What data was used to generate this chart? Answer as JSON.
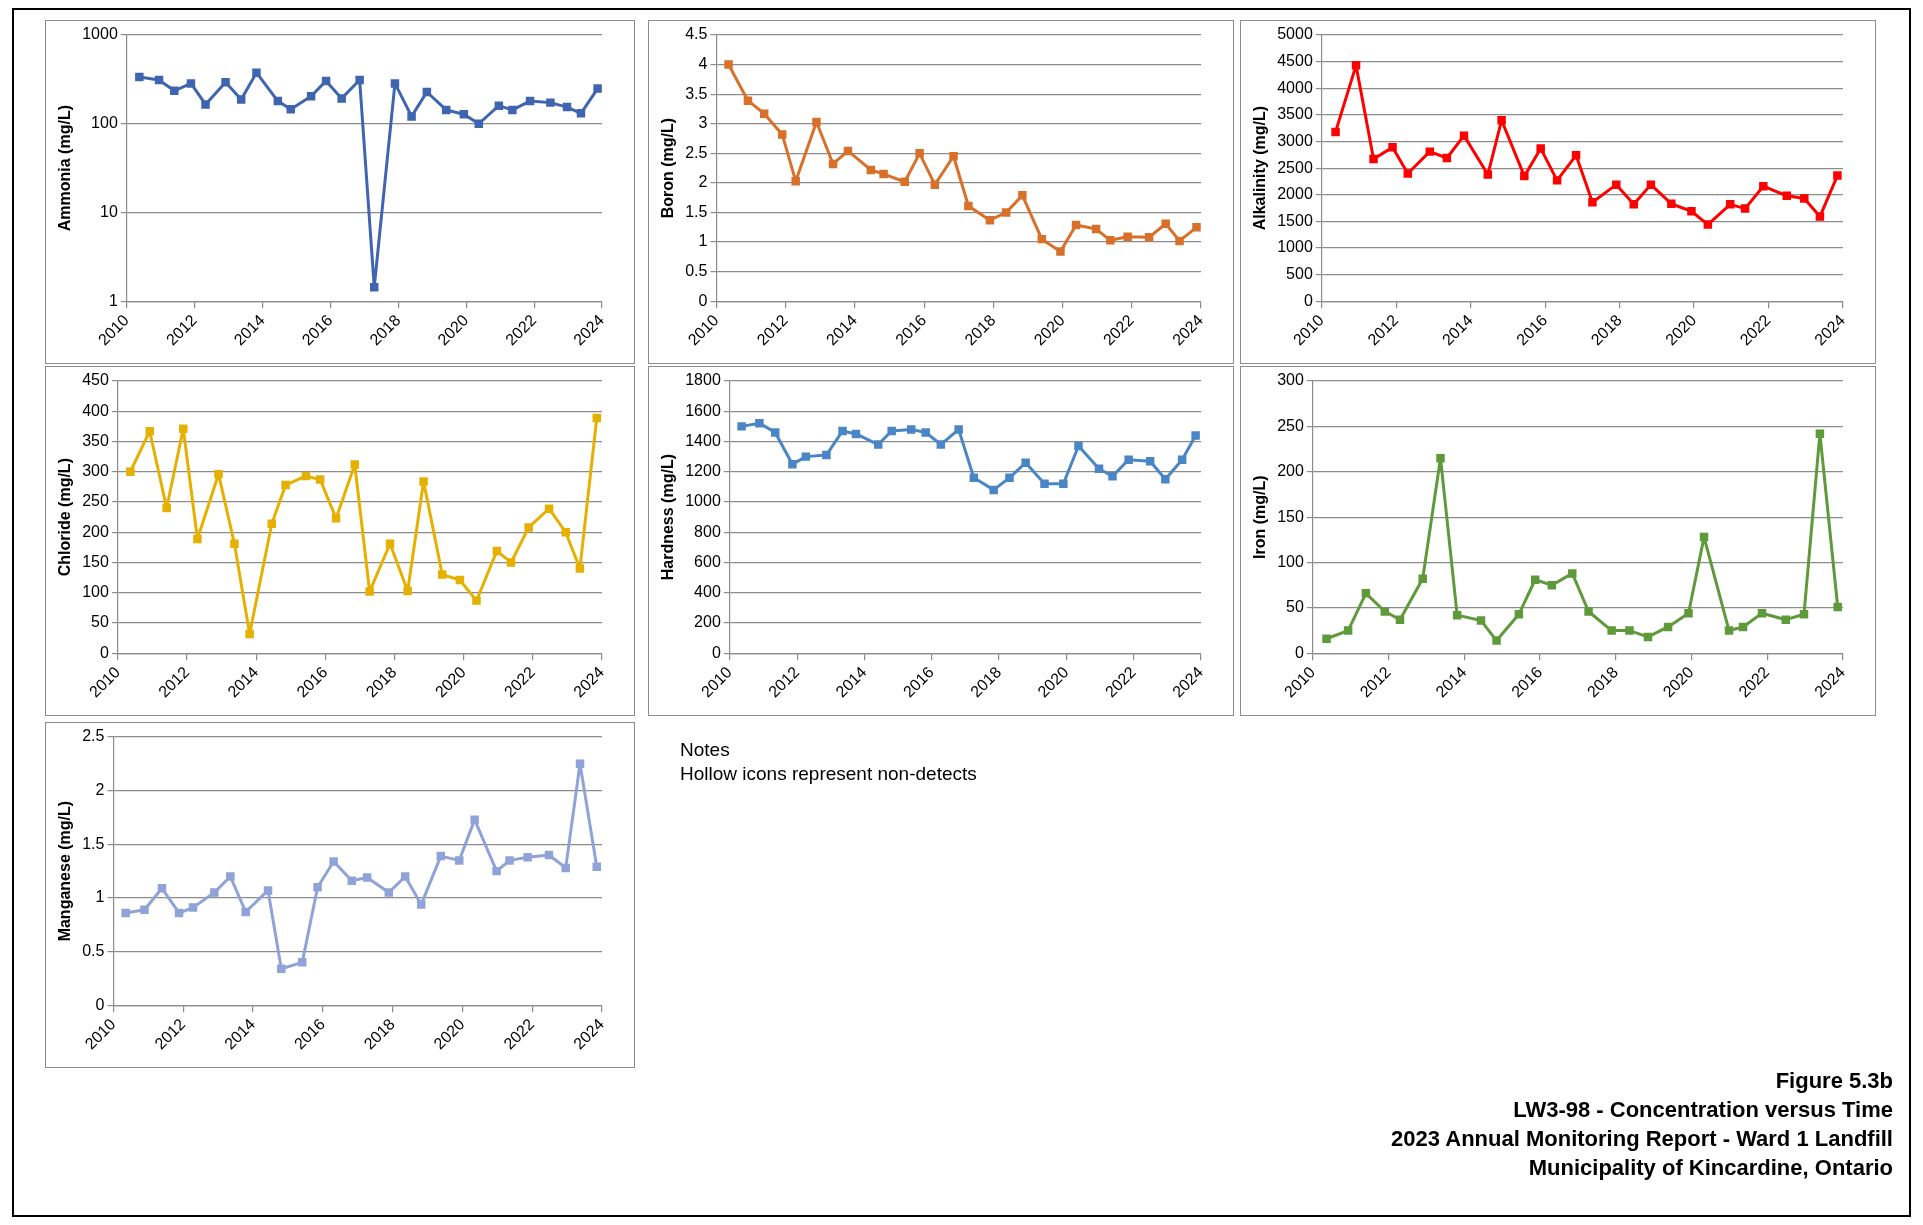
{
  "chart_data": [
    {
      "type": "line",
      "ylabel": "Ammonia (mg/L)",
      "log": "y",
      "xlim": [
        2010,
        2024
      ],
      "xticks": [
        2010,
        2012,
        2014,
        2016,
        2018,
        2020,
        2022,
        2024
      ],
      "ylim": [
        1,
        1000
      ],
      "yticks": [
        1,
        10,
        100,
        1000
      ],
      "grid": "y",
      "marker": "square",
      "series": [
        {
          "color": "#3f65b0",
          "x": [
            2010.37,
            2010.95,
            2011.4,
            2011.89,
            2012.32,
            2012.91,
            2013.37,
            2013.82,
            2014.45,
            2014.83,
            2015.43,
            2015.87,
            2016.33,
            2016.86,
            2017.29,
            2017.9,
            2018.39,
            2018.84,
            2019.41,
            2019.93,
            2020.37,
            2020.96,
            2021.36,
            2021.88,
            2022.48,
            2022.97,
            2023.38,
            2023.87
          ],
          "values": [
            336,
            311,
            235,
            285,
            165,
            294,
            188,
            376,
            180,
            146,
            204,
            304,
            193,
            311,
            1.44,
            285,
            121,
            228,
            143,
            128,
            100,
            160,
            143,
            180,
            173,
            154,
            131,
            249
          ]
        }
      ]
    },
    {
      "type": "line",
      "ylabel": "Boron (mg/L)",
      "xlim": [
        2010,
        2024
      ],
      "xticks": [
        2010,
        2012,
        2014,
        2016,
        2018,
        2020,
        2022,
        2024
      ],
      "ylim": [
        0,
        4.5
      ],
      "yticks": [
        0,
        0.5,
        1,
        1.5,
        2,
        2.5,
        3,
        3.5,
        4,
        4.5
      ],
      "grid": "y",
      "marker": "square",
      "series": [
        {
          "color": "#d8702a",
          "x": [
            2010.35,
            2010.91,
            2011.38,
            2011.9,
            2012.29,
            2012.89,
            2013.37,
            2013.8,
            2014.46,
            2014.83,
            2015.44,
            2015.87,
            2016.31,
            2016.85,
            2017.28,
            2017.9,
            2018.37,
            2018.84,
            2019.4,
            2019.94,
            2020.39,
            2020.97,
            2021.38,
            2021.88,
            2022.5,
            2022.98,
            2023.38,
            2023.87
          ],
          "values": [
            4.0,
            3.39,
            3.17,
            2.82,
            2.03,
            3.03,
            2.32,
            2.54,
            2.22,
            2.15,
            2.02,
            2.5,
            1.97,
            2.45,
            1.61,
            1.37,
            1.5,
            1.79,
            1.05,
            0.84,
            1.29,
            1.22,
            1.03,
            1.09,
            1.08,
            1.31,
            1.02,
            1.25
          ]
        }
      ]
    },
    {
      "type": "line",
      "ylabel": "Alkalinity (mg/L)",
      "xlim": [
        2010,
        2024
      ],
      "xticks": [
        2010,
        2012,
        2014,
        2016,
        2018,
        2020,
        2022,
        2024
      ],
      "ylim": [
        0,
        5000
      ],
      "yticks": [
        0,
        500,
        1000,
        1500,
        2000,
        2500,
        3000,
        3500,
        4000,
        4500,
        5000
      ],
      "grid": "y",
      "marker": "square",
      "series": [
        {
          "color": "#ff0000",
          "x": [
            2010.37,
            2010.92,
            2011.39,
            2011.9,
            2012.31,
            2012.9,
            2013.36,
            2013.82,
            2014.46,
            2014.83,
            2015.44,
            2015.88,
            2016.32,
            2016.83,
            2017.27,
            2017.91,
            2018.38,
            2018.84,
            2019.39,
            2019.93,
            2020.37,
            2020.97,
            2021.37,
            2021.86,
            2022.49,
            2022.96,
            2023.38,
            2023.85
          ],
          "values": [
            3180,
            4430,
            2670,
            2890,
            2400,
            2810,
            2690,
            3110,
            2380,
            3400,
            2350,
            2870,
            2270,
            2740,
            1860,
            2190,
            1820,
            2190,
            1830,
            1690,
            1440,
            1820,
            1740,
            2160,
            1980,
            1930,
            1590,
            2360
          ]
        }
      ]
    },
    {
      "type": "line",
      "ylabel": "Chloride (mg/L)",
      "xlim": [
        2010,
        2024
      ],
      "xticks": [
        2010,
        2012,
        2014,
        2016,
        2018,
        2020,
        2022,
        2024
      ],
      "ylim": [
        0,
        450
      ],
      "yticks": [
        0,
        50,
        100,
        150,
        200,
        250,
        300,
        350,
        400,
        450
      ],
      "grid": "y",
      "marker": "square",
      "series": [
        {
          "color": "#e6b000",
          "x": [
            2010.36,
            2010.92,
            2011.41,
            2011.89,
            2012.3,
            2012.91,
            2013.37,
            2013.81,
            2014.45,
            2014.85,
            2015.44,
            2015.85,
            2016.31,
            2016.85,
            2017.28,
            2017.87,
            2018.38,
            2018.84,
            2019.38,
            2019.89,
            2020.37,
            2020.96,
            2021.37,
            2021.88,
            2022.47,
            2022.95,
            2023.36,
            2023.85
          ],
          "values": [
            300,
            367,
            240,
            371,
            189,
            296,
            181,
            32,
            214,
            278,
            293,
            287,
            223,
            312,
            102,
            181,
            103,
            284,
            130,
            121,
            87,
            169,
            150,
            208,
            239,
            200,
            140,
            389
          ]
        }
      ]
    },
    {
      "type": "line",
      "ylabel": "Hardness (mg/L)",
      "xlim": [
        2010,
        2024
      ],
      "xticks": [
        2010,
        2012,
        2014,
        2016,
        2018,
        2020,
        2022,
        2024
      ],
      "ylim": [
        0,
        1800
      ],
      "yticks": [
        0,
        200,
        400,
        600,
        800,
        1000,
        1200,
        1400,
        1600,
        1800
      ],
      "grid": "y",
      "marker": "square",
      "series": [
        {
          "color": "#4a86c5",
          "x": [
            2010.35,
            2010.88,
            2011.35,
            2011.86,
            2012.26,
            2012.87,
            2013.35,
            2013.75,
            2014.41,
            2014.81,
            2015.39,
            2015.82,
            2016.27,
            2016.8,
            2017.25,
            2017.84,
            2018.31,
            2018.79,
            2019.35,
            2019.91,
            2020.36,
            2020.97,
            2021.37,
            2021.85,
            2022.49,
            2022.94,
            2023.44,
            2023.84
          ],
          "values": [
            1500,
            1520,
            1460,
            1250,
            1300,
            1310,
            1470,
            1450,
            1380,
            1470,
            1480,
            1460,
            1380,
            1480,
            1160,
            1080,
            1160,
            1260,
            1120,
            1120,
            1370,
            1220,
            1170,
            1280,
            1270,
            1150,
            1280,
            1440
          ]
        }
      ]
    },
    {
      "type": "line",
      "ylabel": "Iron (mg/L)",
      "xlim": [
        2010,
        2024
      ],
      "xticks": [
        2010,
        2012,
        2014,
        2016,
        2018,
        2020,
        2022,
        2024
      ],
      "ylim": [
        0,
        300
      ],
      "yticks": [
        0,
        50,
        100,
        150,
        200,
        250,
        300
      ],
      "grid": "y",
      "marker": "square",
      "series": [
        {
          "color": "#5e9a3a",
          "x": [
            2010.36,
            2010.93,
            2011.4,
            2011.9,
            2012.3,
            2012.9,
            2013.37,
            2013.81,
            2014.44,
            2014.85,
            2015.44,
            2015.87,
            2016.31,
            2016.85,
            2017.28,
            2017.89,
            2018.36,
            2018.85,
            2019.38,
            2019.92,
            2020.33,
            2020.99,
            2021.36,
            2021.86,
            2022.49,
            2022.97,
            2023.39,
            2023.86
          ],
          "values": [
            16,
            25,
            66,
            46,
            37,
            82,
            215,
            42,
            36,
            14,
            43,
            81,
            75,
            88,
            46,
            25,
            25,
            18,
            29,
            44,
            128,
            25,
            29,
            44,
            37,
            43,
            242,
            51
          ]
        }
      ]
    },
    {
      "type": "line",
      "ylabel": "Manganese (mg/L)",
      "xlim": [
        2010,
        2024
      ],
      "xticks": [
        2010,
        2012,
        2014,
        2016,
        2018,
        2020,
        2022,
        2024
      ],
      "ylim": [
        0,
        2.5
      ],
      "yticks": [
        0,
        0.5,
        1,
        1.5,
        2,
        2.5
      ],
      "grid": "y",
      "marker": "square",
      "series": [
        {
          "color": "#8fa3d8",
          "x": [
            2010.35,
            2010.89,
            2011.39,
            2011.88,
            2012.28,
            2012.89,
            2013.35,
            2013.79,
            2014.43,
            2014.81,
            2015.41,
            2015.85,
            2016.31,
            2016.83,
            2017.27,
            2017.89,
            2018.36,
            2018.82,
            2019.38,
            2019.91,
            2020.35,
            2020.98,
            2021.35,
            2021.87,
            2022.48,
            2022.96,
            2023.37,
            2023.85
          ],
          "values": [
            0.86,
            0.89,
            1.09,
            0.86,
            0.91,
            1.05,
            1.2,
            0.87,
            1.07,
            0.34,
            0.4,
            1.1,
            1.34,
            1.16,
            1.19,
            1.05,
            1.2,
            0.94,
            1.39,
            1.35,
            1.73,
            1.25,
            1.35,
            1.38,
            1.4,
            1.28,
            2.25,
            1.29
          ]
        }
      ]
    },
    {
      "type": "other",
      "annotations": [
        "Notes",
        "Hollow icons represent non-detects"
      ]
    },
    {
      "type": "other",
      "title": "Figure 5.3b",
      "annotations": [
        "LW3-98 - Concentration versus Time",
        "2023 Annual Monitoring Report - Ward 1 Landfill",
        "Municipality of Kincardine, Ontario"
      ]
    }
  ]
}
